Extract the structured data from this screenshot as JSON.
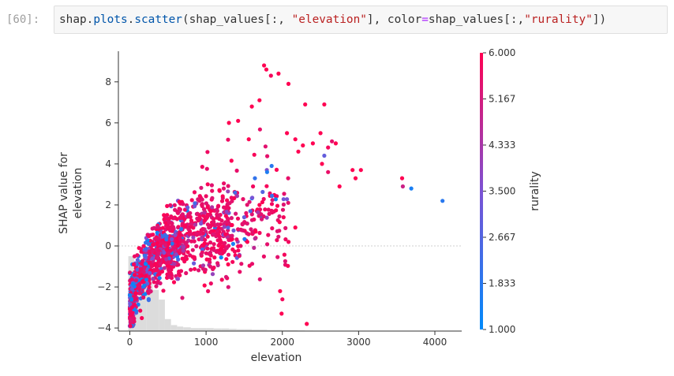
{
  "cell": {
    "prompt": "[60]:",
    "code_tokens": [
      {
        "t": "shap",
        "c": "name"
      },
      {
        "t": ".",
        "c": "name"
      },
      {
        "t": "plots",
        "c": "attr"
      },
      {
        "t": ".",
        "c": "name"
      },
      {
        "t": "scatter",
        "c": "attr"
      },
      {
        "t": "(shap_values[:, ",
        "c": "name"
      },
      {
        "t": "\"elevation\"",
        "c": "str"
      },
      {
        "t": "], color",
        "c": "name"
      },
      {
        "t": "=",
        "c": "op"
      },
      {
        "t": "shap_values[:,",
        "c": "name"
      },
      {
        "t": "\"rurality\"",
        "c": "str"
      },
      {
        "t": "])",
        "c": "name"
      }
    ]
  },
  "chart_data": {
    "type": "scatter",
    "xlabel": "elevation",
    "ylabel_lines": [
      "SHAP value for",
      "elevation"
    ],
    "xlim": [
      -150,
      4300
    ],
    "ylim": [
      -4.15,
      9.3
    ],
    "x_ticks": [
      0,
      1000,
      2000,
      3000,
      4000
    ],
    "y_ticks": [
      -4,
      -2,
      0,
      2,
      4,
      6,
      8
    ],
    "zero_line": 0,
    "colorbar": {
      "label": "rurality",
      "min": 1.0,
      "max": 6.0,
      "ticks": [
        "6.000",
        "5.167",
        "4.333",
        "3.500",
        "2.667",
        "1.833",
        "1.000"
      ],
      "colors": [
        "#008afb",
        "#7c52d4",
        "#ff0052"
      ]
    },
    "histogram": {
      "bin_edges": [
        -20,
        60,
        140,
        220,
        300,
        380,
        460,
        540,
        620,
        700,
        800,
        900,
        1000,
        1100,
        1200,
        1300,
        1400,
        1500,
        1600,
        1700,
        1800,
        1900,
        2000,
        2100,
        2200,
        2300,
        2400
      ],
      "relative_heights": [
        1.0,
        0.45,
        0.68,
        0.75,
        0.55,
        0.42,
        0.16,
        0.08,
        0.06,
        0.05,
        0.04,
        0.04,
        0.04,
        0.035,
        0.035,
        0.03,
        0.025,
        0.025,
        0.02,
        0.02,
        0.015,
        0.015,
        0.01,
        0.01,
        0.008,
        0.006
      ]
    },
    "outlier_points": [
      {
        "x": 1760,
        "y": 8.8,
        "c": 6.0
      },
      {
        "x": 1790,
        "y": 8.6,
        "c": 6.0
      },
      {
        "x": 1950,
        "y": 8.4,
        "c": 6.0
      },
      {
        "x": 2080,
        "y": 7.9,
        "c": 6.0
      },
      {
        "x": 1850,
        "y": 8.3,
        "c": 5.8
      },
      {
        "x": 1600,
        "y": 6.8,
        "c": 6.0
      },
      {
        "x": 1700,
        "y": 7.1,
        "c": 6.0
      },
      {
        "x": 2300,
        "y": 6.9,
        "c": 6.0
      },
      {
        "x": 2550,
        "y": 6.9,
        "c": 6.0
      },
      {
        "x": 2500,
        "y": 5.5,
        "c": 6.0
      },
      {
        "x": 2650,
        "y": 5.1,
        "c": 5.5
      },
      {
        "x": 2600,
        "y": 4.8,
        "c": 5.8
      },
      {
        "x": 2700,
        "y": 5.0,
        "c": 6.0
      },
      {
        "x": 2550,
        "y": 4.4,
        "c": 3.0
      },
      {
        "x": 2520,
        "y": 4.0,
        "c": 6.0
      },
      {
        "x": 2600,
        "y": 3.6,
        "c": 5.6
      },
      {
        "x": 2750,
        "y": 2.9,
        "c": 6.0
      },
      {
        "x": 2920,
        "y": 3.7,
        "c": 6.0
      },
      {
        "x": 3030,
        "y": 3.7,
        "c": 6.0
      },
      {
        "x": 2960,
        "y": 3.3,
        "c": 6.0
      },
      {
        "x": 3570,
        "y": 3.3,
        "c": 6.0
      },
      {
        "x": 3580,
        "y": 2.9,
        "c": 5.0
      },
      {
        "x": 3690,
        "y": 2.8,
        "c": 1.5
      },
      {
        "x": 4100,
        "y": 2.2,
        "c": 1.8
      },
      {
        "x": 2170,
        "y": 0.9,
        "c": 6.0
      },
      {
        "x": 1650,
        "y": 0.7,
        "c": 6.0
      },
      {
        "x": 1290,
        "y": -0.9,
        "c": 6.0
      },
      {
        "x": 1330,
        "y": 0.3,
        "c": 6.0
      },
      {
        "x": 1970,
        "y": -2.2,
        "c": 6.0
      },
      {
        "x": 2000,
        "y": -2.6,
        "c": 5.8
      },
      {
        "x": 1990,
        "y": -3.3,
        "c": 6.0
      },
      {
        "x": 2320,
        "y": -3.8,
        "c": 6.0
      },
      {
        "x": 1700,
        "y": 2.0,
        "c": 6.0
      },
      {
        "x": 1800,
        "y": 3.6,
        "c": 1.6
      },
      {
        "x": 1860,
        "y": 3.9,
        "c": 1.8
      },
      {
        "x": 1640,
        "y": 3.3,
        "c": 2.0
      },
      {
        "x": 1580,
        "y": 1.7,
        "c": 2.6
      },
      {
        "x": 1500,
        "y": 1.4,
        "c": 3.0
      },
      {
        "x": 1380,
        "y": 2.6,
        "c": 2.4
      },
      {
        "x": 1560,
        "y": 5.2,
        "c": 6.0
      },
      {
        "x": 1420,
        "y": 6.1,
        "c": 6.0
      },
      {
        "x": 1300,
        "y": 6.0,
        "c": 6.0
      },
      {
        "x": 2060,
        "y": 5.5,
        "c": 6.0
      },
      {
        "x": 2170,
        "y": 5.2,
        "c": 6.0
      },
      {
        "x": 2270,
        "y": 4.9,
        "c": 6.0
      },
      {
        "x": 2210,
        "y": 4.6,
        "c": 6.0
      },
      {
        "x": 2400,
        "y": 5.0,
        "c": 6.0
      }
    ],
    "cloud_generator": {
      "n": 1300,
      "seed": 42,
      "note": "dense core of points: y rises with x, saturating near 3; low-x points skew low rurality (blue)"
    }
  }
}
